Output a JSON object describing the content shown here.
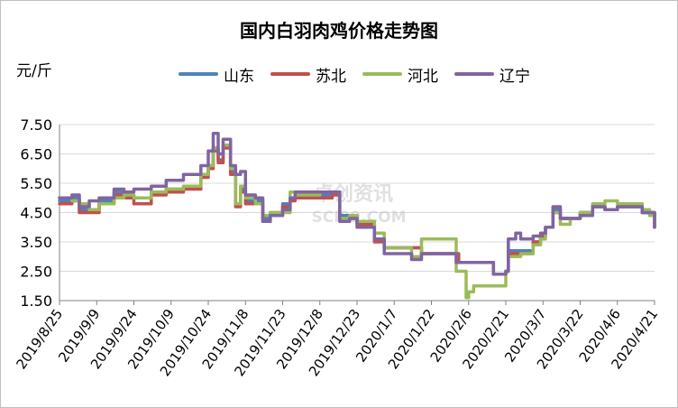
{
  "chart_data": {
    "type": "line",
    "title": "国内白羽肉鸡价格走势图",
    "ylabel": "元/斤",
    "ylim": [
      1.5,
      7.5
    ],
    "yticks": [
      "1.50",
      "2.50",
      "3.50",
      "4.50",
      "5.50",
      "6.50",
      "7.50"
    ],
    "x_tick_labels": [
      "2019/8/25",
      "2019/9/9",
      "2019/9/24",
      "2019/10/9",
      "2019/10/24",
      "2019/11/8",
      "2019/11/23",
      "2019/12/8",
      "2019/12/23",
      "2020/1/7",
      "2020/1/22",
      "2020/2/6",
      "2020/2/21",
      "2020/3/7",
      "2020/3/22",
      "2020/4/6",
      "2020/4/21"
    ],
    "x_start_date": "2019/8/25",
    "x_end_date": "2020/4/21",
    "legend_position": "top",
    "grid": "horizontal",
    "watermark": "卓创资讯 SCI99.COM",
    "series": [
      {
        "name": "山东",
        "color": "#4f81bd",
        "points": [
          [
            "2019/8/25",
            4.9
          ],
          [
            "2019/8/30",
            5.0
          ],
          [
            "2019/9/2",
            4.6
          ],
          [
            "2019/9/6",
            4.6
          ],
          [
            "2019/9/10",
            4.9
          ],
          [
            "2019/9/16",
            5.2
          ],
          [
            "2019/9/20",
            5.1
          ],
          [
            "2019/9/24",
            5.0
          ],
          [
            "2019/10/1",
            5.2
          ],
          [
            "2019/10/7",
            5.3
          ],
          [
            "2019/10/14",
            5.35
          ],
          [
            "2019/10/18",
            5.4
          ],
          [
            "2019/10/21",
            5.8
          ],
          [
            "2019/10/24",
            6.1
          ],
          [
            "2019/10/26",
            6.7
          ],
          [
            "2019/10/28",
            6.3
          ],
          [
            "2019/10/30",
            6.8
          ],
          [
            "2019/11/2",
            5.9
          ],
          [
            "2019/11/4",
            4.8
          ],
          [
            "2019/11/6",
            5.3
          ],
          [
            "2019/11/8",
            4.9
          ],
          [
            "2019/11/12",
            4.9
          ],
          [
            "2019/11/15",
            4.3
          ],
          [
            "2019/11/18",
            4.5
          ],
          [
            "2019/11/23",
            4.8
          ],
          [
            "2019/11/26",
            5.0
          ],
          [
            "2019/11/28",
            5.1
          ],
          [
            "2019/12/3",
            5.1
          ],
          [
            "2019/12/8",
            5.1
          ],
          [
            "2019/12/13",
            5.2
          ],
          [
            "2019/12/16",
            4.4
          ],
          [
            "2019/12/20",
            4.4
          ],
          [
            "2019/12/23",
            4.2
          ],
          [
            "2019/12/26",
            4.2
          ],
          [
            "2019/12/30",
            3.6
          ],
          [
            "2020/1/3",
            3.3
          ],
          [
            "2020/1/10",
            3.3
          ],
          [
            "2020/1/14",
            3.3
          ],
          [
            "2020/1/18",
            3.1
          ],
          [
            "2020/1/22",
            3.1
          ],
          [
            "2020/1/31",
            3.1
          ],
          [
            "2020/2/1",
            3.1
          ],
          [
            "2020/2/2",
            2.8
          ],
          [
            "2020/2/5",
            2.8
          ],
          [
            "2020/2/14",
            2.8
          ],
          [
            "2020/2/16",
            2.4
          ],
          [
            "2020/2/21",
            2.5
          ],
          [
            "2020/2/22",
            3.2
          ],
          [
            "2020/2/25",
            3.2
          ],
          [
            "2020/2/27",
            3.2
          ],
          [
            "2020/3/3",
            3.5
          ],
          [
            "2020/3/6",
            3.7
          ],
          [
            "2020/3/8",
            4.0
          ],
          [
            "2020/3/11",
            4.6
          ],
          [
            "2020/3/14",
            4.3
          ],
          [
            "2020/3/18",
            4.3
          ],
          [
            "2020/3/22",
            4.5
          ],
          [
            "2020/3/27",
            4.7
          ],
          [
            "2020/4/1",
            4.6
          ],
          [
            "2020/4/6",
            4.7
          ],
          [
            "2020/4/11",
            4.7
          ],
          [
            "2020/4/16",
            4.5
          ],
          [
            "2020/4/19",
            4.5
          ],
          [
            "2020/4/21",
            4.0
          ]
        ]
      },
      {
        "name": "苏北",
        "color": "#c0504d",
        "points": [
          [
            "2019/8/25",
            4.8
          ],
          [
            "2019/8/30",
            4.9
          ],
          [
            "2019/9/2",
            4.5
          ],
          [
            "2019/9/6",
            4.5
          ],
          [
            "2019/9/10",
            4.8
          ],
          [
            "2019/9/16",
            5.1
          ],
          [
            "2019/9/20",
            5.0
          ],
          [
            "2019/9/24",
            4.8
          ],
          [
            "2019/10/1",
            5.1
          ],
          [
            "2019/10/7",
            5.2
          ],
          [
            "2019/10/14",
            5.3
          ],
          [
            "2019/10/18",
            5.3
          ],
          [
            "2019/10/21",
            5.7
          ],
          [
            "2019/10/24",
            6.0
          ],
          [
            "2019/10/26",
            6.6
          ],
          [
            "2019/10/28",
            6.2
          ],
          [
            "2019/10/30",
            6.7
          ],
          [
            "2019/11/2",
            5.8
          ],
          [
            "2019/11/4",
            4.7
          ],
          [
            "2019/11/6",
            5.2
          ],
          [
            "2019/11/8",
            4.8
          ],
          [
            "2019/11/12",
            4.8
          ],
          [
            "2019/11/15",
            4.2
          ],
          [
            "2019/11/18",
            4.4
          ],
          [
            "2019/11/23",
            4.7
          ],
          [
            "2019/11/26",
            4.9
          ],
          [
            "2019/11/28",
            5.0
          ],
          [
            "2019/12/3",
            5.0
          ],
          [
            "2019/12/8",
            5.0
          ],
          [
            "2019/12/13",
            5.1
          ],
          [
            "2019/12/16",
            4.3
          ],
          [
            "2019/12/20",
            4.3
          ],
          [
            "2019/12/23",
            4.1
          ],
          [
            "2019/12/26",
            4.1
          ],
          [
            "2019/12/30",
            3.5
          ],
          [
            "2020/1/3",
            3.3
          ],
          [
            "2020/1/10",
            3.3
          ],
          [
            "2020/1/14",
            3.3
          ],
          [
            "2020/1/18",
            3.1
          ],
          [
            "2020/1/22",
            3.1
          ],
          [
            "2020/1/31",
            3.1
          ],
          [
            "2020/2/1",
            3.1
          ],
          [
            "2020/2/2",
            2.8
          ],
          [
            "2020/2/5",
            2.8
          ],
          [
            "2020/2/14",
            2.8
          ],
          [
            "2020/2/16",
            2.4
          ],
          [
            "2020/2/21",
            2.5
          ],
          [
            "2020/2/22",
            3.1
          ],
          [
            "2020/2/25",
            3.1
          ],
          [
            "2020/2/27",
            3.1
          ],
          [
            "2020/3/3",
            3.5
          ],
          [
            "2020/3/6",
            3.7
          ],
          [
            "2020/3/8",
            4.0
          ],
          [
            "2020/3/11",
            4.5
          ],
          [
            "2020/3/14",
            4.3
          ],
          [
            "2020/3/18",
            4.3
          ],
          [
            "2020/3/22",
            4.5
          ],
          [
            "2020/3/27",
            4.7
          ],
          [
            "2020/4/1",
            4.6
          ],
          [
            "2020/4/6",
            4.7
          ],
          [
            "2020/4/11",
            4.7
          ],
          [
            "2020/4/16",
            4.5
          ],
          [
            "2020/4/19",
            4.5
          ],
          [
            "2020/4/21",
            4.0
          ]
        ]
      },
      {
        "name": "河北",
        "color": "#9bbb59",
        "points": [
          [
            "2019/8/25",
            5.0
          ],
          [
            "2019/8/30",
            4.9
          ],
          [
            "2019/9/2",
            4.8
          ],
          [
            "2019/9/6",
            4.6
          ],
          [
            "2019/9/10",
            4.8
          ],
          [
            "2019/9/16",
            5.0
          ],
          [
            "2019/9/20",
            5.1
          ],
          [
            "2019/9/24",
            5.0
          ],
          [
            "2019/10/1",
            5.2
          ],
          [
            "2019/10/7",
            5.3
          ],
          [
            "2019/10/14",
            5.4
          ],
          [
            "2019/10/18",
            5.4
          ],
          [
            "2019/10/21",
            5.8
          ],
          [
            "2019/10/24",
            6.1
          ],
          [
            "2019/10/26",
            6.7
          ],
          [
            "2019/10/28",
            6.5
          ],
          [
            "2019/10/30",
            6.8
          ],
          [
            "2019/11/2",
            6.0
          ],
          [
            "2019/11/4",
            4.8
          ],
          [
            "2019/11/6",
            5.4
          ],
          [
            "2019/11/8",
            5.0
          ],
          [
            "2019/11/12",
            4.8
          ],
          [
            "2019/11/15",
            4.4
          ],
          [
            "2019/11/18",
            4.5
          ],
          [
            "2019/11/23",
            4.5
          ],
          [
            "2019/11/26",
            5.2
          ],
          [
            "2019/11/28",
            5.1
          ],
          [
            "2019/12/3",
            5.1
          ],
          [
            "2019/12/8",
            5.2
          ],
          [
            "2019/12/13",
            5.2
          ],
          [
            "2019/12/16",
            4.3
          ],
          [
            "2019/12/20",
            4.4
          ],
          [
            "2019/12/23",
            4.2
          ],
          [
            "2019/12/26",
            4.2
          ],
          [
            "2019/12/30",
            3.8
          ],
          [
            "2020/1/3",
            3.3
          ],
          [
            "2020/1/10",
            3.3
          ],
          [
            "2020/1/14",
            3.0
          ],
          [
            "2020/1/18",
            3.6
          ],
          [
            "2020/1/22",
            3.6
          ],
          [
            "2020/1/31",
            3.6
          ],
          [
            "2020/2/1",
            2.5
          ],
          [
            "2020/2/2",
            2.5
          ],
          [
            "2020/2/5",
            1.6
          ],
          [
            "2020/2/6",
            1.8
          ],
          [
            "2020/2/8",
            2.0
          ],
          [
            "2020/2/18",
            2.0
          ],
          [
            "2020/2/21",
            2.5
          ],
          [
            "2020/2/22",
            3.0
          ],
          [
            "2020/2/27",
            3.1
          ],
          [
            "2020/3/3",
            3.4
          ],
          [
            "2020/3/6",
            3.6
          ],
          [
            "2020/3/8",
            4.0
          ],
          [
            "2020/3/11",
            4.5
          ],
          [
            "2020/3/14",
            4.1
          ],
          [
            "2020/3/18",
            4.3
          ],
          [
            "2020/3/22",
            4.5
          ],
          [
            "2020/3/27",
            4.8
          ],
          [
            "2020/4/1",
            4.9
          ],
          [
            "2020/4/6",
            4.8
          ],
          [
            "2020/4/11",
            4.8
          ],
          [
            "2020/4/16",
            4.6
          ],
          [
            "2020/4/19",
            4.4
          ],
          [
            "2020/4/21",
            4.1
          ]
        ]
      },
      {
        "name": "辽宁",
        "color": "#8064a2",
        "points": [
          [
            "2019/8/25",
            5.0
          ],
          [
            "2019/8/30",
            5.1
          ],
          [
            "2019/9/2",
            4.7
          ],
          [
            "2019/9/6",
            4.9
          ],
          [
            "2019/9/10",
            5.0
          ],
          [
            "2019/9/16",
            5.3
          ],
          [
            "2019/9/20",
            5.2
          ],
          [
            "2019/9/24",
            5.3
          ],
          [
            "2019/10/1",
            5.4
          ],
          [
            "2019/10/7",
            5.6
          ],
          [
            "2019/10/14",
            5.8
          ],
          [
            "2019/10/18",
            5.8
          ],
          [
            "2019/10/21",
            6.1
          ],
          [
            "2019/10/24",
            6.6
          ],
          [
            "2019/10/26",
            7.2
          ],
          [
            "2019/10/28",
            6.5
          ],
          [
            "2019/10/30",
            7.0
          ],
          [
            "2019/11/2",
            6.1
          ],
          [
            "2019/11/4",
            5.8
          ],
          [
            "2019/11/6",
            5.9
          ],
          [
            "2019/11/8",
            5.1
          ],
          [
            "2019/11/12",
            5.0
          ],
          [
            "2019/11/15",
            4.2
          ],
          [
            "2019/11/18",
            4.4
          ],
          [
            "2019/11/23",
            4.6
          ],
          [
            "2019/11/26",
            5.0
          ],
          [
            "2019/11/28",
            5.2
          ],
          [
            "2019/12/3",
            5.2
          ],
          [
            "2019/12/8",
            5.2
          ],
          [
            "2019/12/13",
            5.2
          ],
          [
            "2019/12/16",
            4.2
          ],
          [
            "2019/12/20",
            4.3
          ],
          [
            "2019/12/23",
            4.0
          ],
          [
            "2019/12/26",
            4.0
          ],
          [
            "2019/12/30",
            3.6
          ],
          [
            "2020/1/3",
            3.1
          ],
          [
            "2020/1/10",
            3.1
          ],
          [
            "2020/1/14",
            2.9
          ],
          [
            "2020/1/18",
            3.1
          ],
          [
            "2020/1/22",
            3.1
          ],
          [
            "2020/1/31",
            3.1
          ],
          [
            "2020/2/1",
            2.8
          ],
          [
            "2020/2/2",
            2.8
          ],
          [
            "2020/2/5",
            2.8
          ],
          [
            "2020/2/14",
            2.8
          ],
          [
            "2020/2/16",
            2.4
          ],
          [
            "2020/2/21",
            2.5
          ],
          [
            "2020/2/22",
            3.6
          ],
          [
            "2020/2/25",
            3.8
          ],
          [
            "2020/2/27",
            3.6
          ],
          [
            "2020/3/3",
            3.7
          ],
          [
            "2020/3/6",
            3.8
          ],
          [
            "2020/3/8",
            4.0
          ],
          [
            "2020/3/11",
            4.7
          ],
          [
            "2020/3/14",
            4.3
          ],
          [
            "2020/3/18",
            4.3
          ],
          [
            "2020/3/22",
            4.4
          ],
          [
            "2020/3/27",
            4.7
          ],
          [
            "2020/4/1",
            4.6
          ],
          [
            "2020/4/6",
            4.7
          ],
          [
            "2020/4/11",
            4.7
          ],
          [
            "2020/4/16",
            4.5
          ],
          [
            "2020/4/19",
            4.5
          ],
          [
            "2020/4/21",
            4.0
          ]
        ]
      }
    ]
  }
}
